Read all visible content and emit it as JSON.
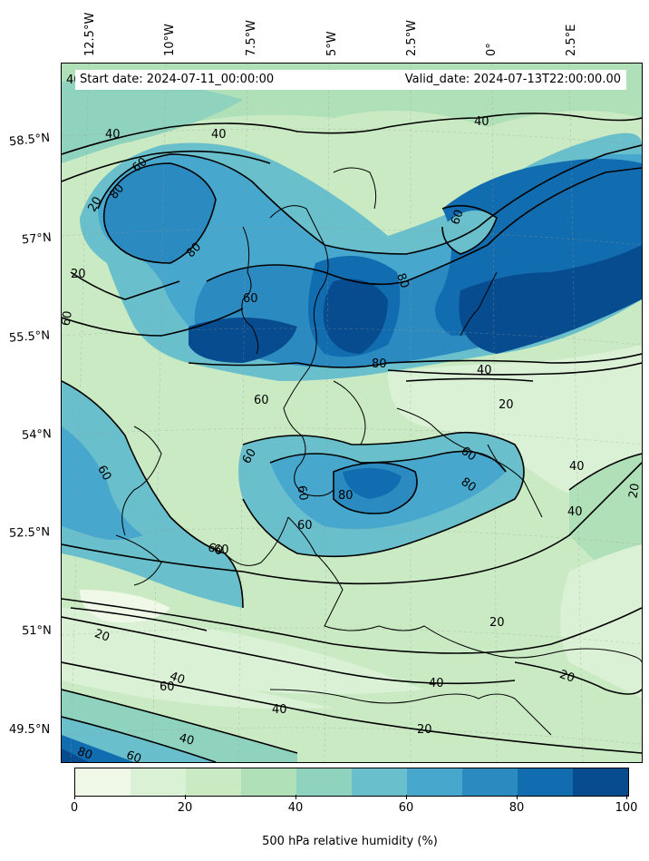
{
  "map": {
    "lon_labels": [
      "12.5°W",
      "10°W",
      "7.5°W",
      "5°W",
      "2.5°W",
      "0°",
      "2.5°E"
    ],
    "lat_labels": [
      "58.5°N",
      "57°N",
      "55.5°N",
      "54°N",
      "52.5°N",
      "51°N",
      "49.5°N"
    ],
    "start_date": "Start date: 2024-07-11_00:00:00",
    "valid_date": "Valid_date: 2024-07-13T22:00:00.00",
    "contour_labels": [
      "40",
      "40",
      "40",
      "20",
      "40",
      "60",
      "80",
      "20",
      "80",
      "60",
      "60",
      "60",
      "60",
      "80",
      "80",
      "40",
      "20",
      "60",
      "60",
      "60",
      "60",
      "60",
      "80",
      "80",
      "60",
      "40",
      "40",
      "20",
      "60",
      "20",
      "40",
      "60",
      "40",
      "20",
      "40",
      "20",
      "80",
      "60",
      "40",
      "20"
    ],
    "variable": "500 hPa relative humidity (%)"
  },
  "colorbar": {
    "label": "500 hPa relative humidity (%)",
    "ticks": [
      "0",
      "20",
      "40",
      "60",
      "80",
      "100"
    ],
    "colors": [
      "#f0f9e8",
      "#dbf1d6",
      "#c9eac2",
      "#b0e0b8",
      "#8fd3bf",
      "#69bfcb",
      "#48a7cd",
      "#2b8ac0",
      "#126db0",
      "#084c90"
    ]
  }
}
